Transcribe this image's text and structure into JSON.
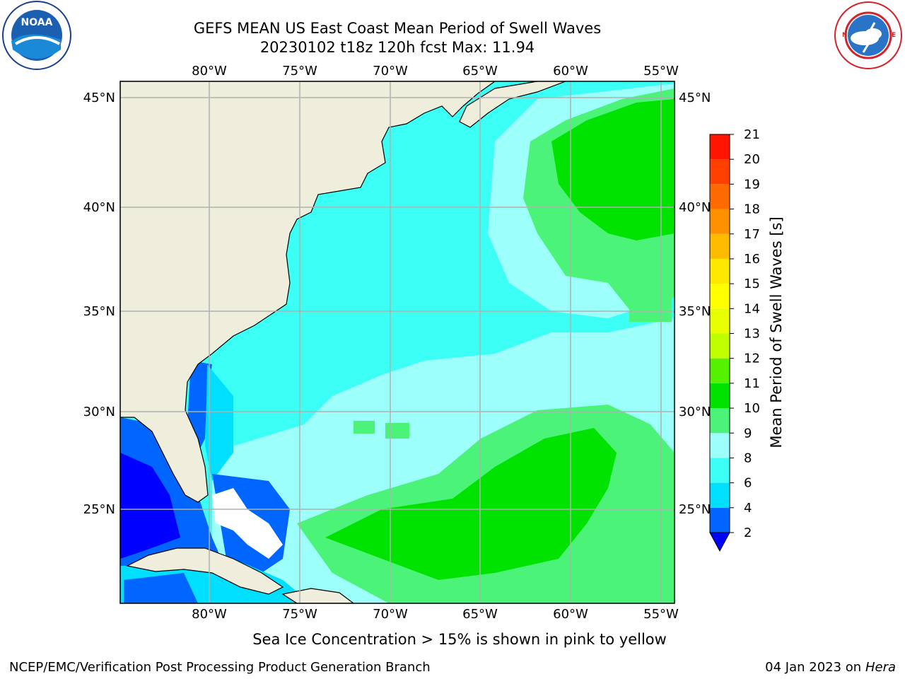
{
  "header": {
    "title_line1": "GEFS MEAN US East Coast Mean Period of Swell Waves",
    "title_line2": "20230102 t18z 120h fcst   Max: 11.94"
  },
  "logos": {
    "left": {
      "name": "noaa-logo",
      "text": "NOAA",
      "ring_text": "NATIONAL OCEANIC AND ATMOSPHERIC ADMINISTRATION · U.S. DEPARTMENT OF COMMERCE"
    },
    "right": {
      "name": "nws-logo",
      "ring_text": "NATIONAL WEATHER SERVICE"
    }
  },
  "map": {
    "lon_labels": [
      "80°W",
      "75°W",
      "70°W",
      "65°W",
      "60°W",
      "55°W"
    ],
    "lat_labels": [
      "45°N",
      "40°N",
      "35°N",
      "30°N",
      "25°N"
    ],
    "colors": {
      "land": "#efeedc",
      "ice_free": "#ffffff",
      "grid": "#b0b0b0",
      "coast": "#000000"
    }
  },
  "colorbar": {
    "label": "Mean Period of Swell Waves [s]",
    "ticks": [
      "2",
      "4",
      "6",
      "8",
      "9",
      "10",
      "11",
      "12",
      "13",
      "14",
      "15",
      "16",
      "17",
      "18",
      "19",
      "20",
      "21"
    ],
    "colors": [
      "#0066ff",
      "#00dfff",
      "#3bfff4",
      "#9dfff9",
      "#4bf478",
      "#00e200",
      "#54f100",
      "#bfff00",
      "#e7ff00",
      "#ffff00",
      "#ffe800",
      "#ffbb00",
      "#ff9100",
      "#ff6a00",
      "#ff4000",
      "#ff1500"
    ],
    "under_color": "#0000ff"
  },
  "footer": {
    "note": "Sea Ice Concentration > 15% is shown in pink to yellow",
    "left": "NCEP/EMC/Verification Post Processing Product Generation Branch",
    "right_date": "04 Jan 2023 on ",
    "right_machine": "Hera"
  }
}
